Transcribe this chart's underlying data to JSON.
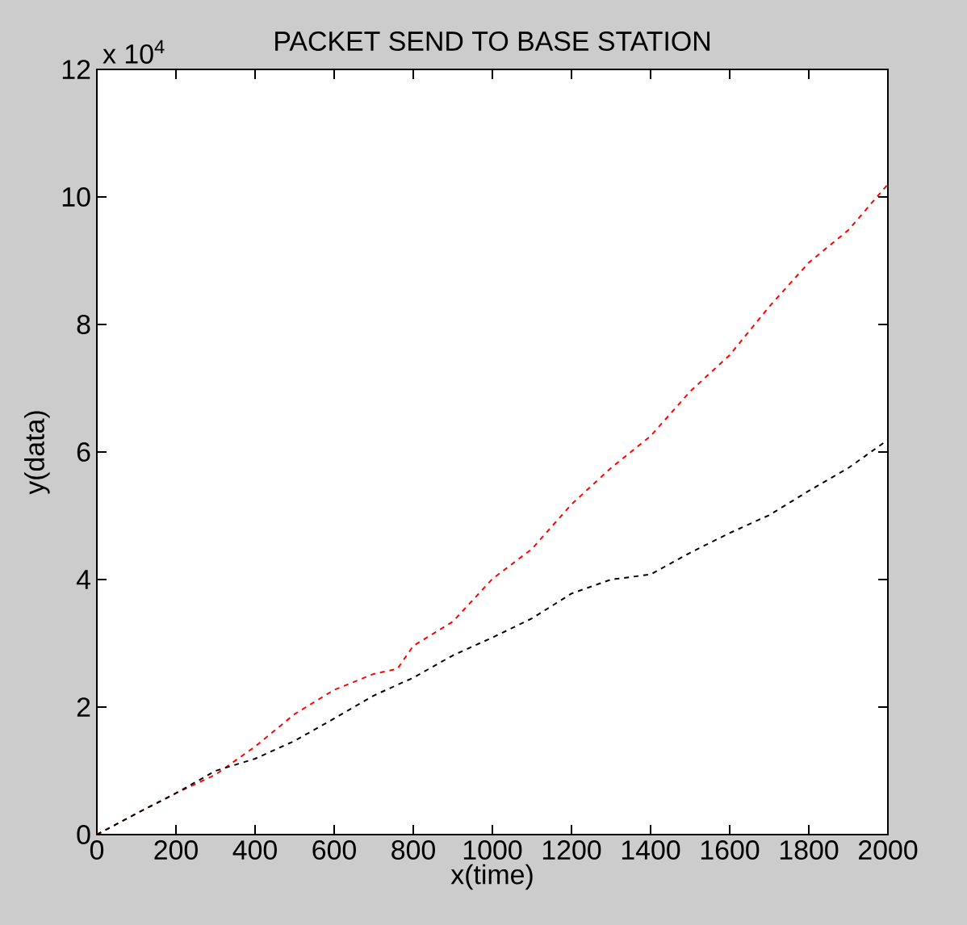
{
  "chart_data": {
    "type": "line",
    "title": "PACKET SEND TO BASE STATION",
    "xlabel": "x(time)",
    "ylabel": "y(data)",
    "annotations": [
      "x 10$^{4}$"
    ],
    "x": [
      0,
      100,
      200,
      300,
      400,
      500,
      600,
      700,
      760,
      800,
      900,
      1000,
      1100,
      1200,
      1300,
      1400,
      1500,
      1600,
      1700,
      1800,
      1900,
      2000
    ],
    "series": [
      {
        "color": "#ff0000",
        "values": [
          0,
          0.33,
          0.65,
          0.94,
          1.38,
          1.89,
          2.27,
          2.52,
          2.6,
          2.96,
          3.34,
          4.01,
          4.48,
          5.18,
          5.75,
          6.25,
          6.95,
          7.52,
          8.28,
          8.97,
          9.48,
          10.2
        ]
      },
      {
        "color": "#000000",
        "values": [
          0,
          0.33,
          0.65,
          1.0,
          1.19,
          1.47,
          1.82,
          2.18,
          2.35,
          2.46,
          2.81,
          3.09,
          3.39,
          3.78,
          4.0,
          4.08,
          4.42,
          4.73,
          5.01,
          5.39,
          5.75,
          6.19
        ]
      }
    ],
    "xlim": [
      0,
      2000
    ],
    "ylim": [
      0,
      12
    ],
    "xticks": [
      0,
      200,
      400,
      600,
      800,
      1000,
      1200,
      1400,
      1600,
      1800,
      2000
    ],
    "yticks": [
      0,
      2,
      4,
      6,
      8,
      10,
      12
    ],
    "line_style": "dashed"
  }
}
